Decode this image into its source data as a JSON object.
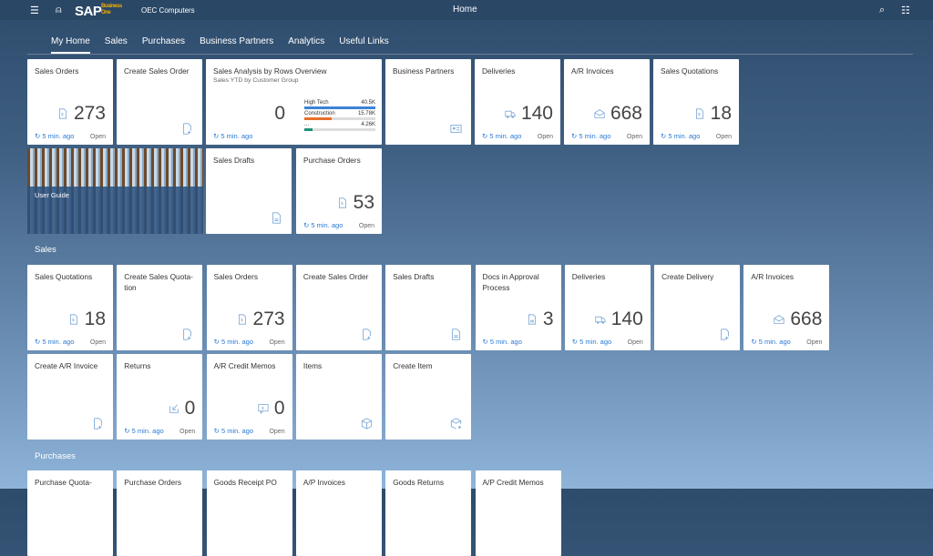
{
  "shell": {
    "company": "OEC Computers",
    "title": "Home",
    "logo": "SAP Business One"
  },
  "tabs": [
    {
      "label": "My Home",
      "active": true
    },
    {
      "label": "Sales"
    },
    {
      "label": "Purchases"
    },
    {
      "label": "Business Partners"
    },
    {
      "label": "Analytics"
    },
    {
      "label": "Useful Links"
    }
  ],
  "colors": {
    "accent": "#2a7ad6",
    "shell": "#2a4766",
    "bar1": "#3b82d6",
    "bar2": "#e8702a",
    "bar3": "#1f8f7a"
  },
  "analysis": {
    "title": "Sales Analysis by Rows Overview",
    "subtitle": "Sales YTD by Customer Group",
    "value": "0",
    "footer": "5 min. ago",
    "bars": [
      {
        "label": "High Tech",
        "value": "40.5K",
        "fraction": 1.0
      },
      {
        "label": "Construction",
        "value": "15.78K",
        "fraction": 0.39
      },
      {
        "label": "...",
        "value": "4.26K",
        "fraction": 0.11
      }
    ]
  },
  "user_guide": {
    "label": "User Guide"
  },
  "sections": {
    "sales": "Sales",
    "purchases": "Purchases"
  },
  "home_tiles": [
    {
      "title": "Sales Orders",
      "value": "273",
      "icon": "document-dollar-icon",
      "footer": "5 min. ago",
      "status": "Open"
    },
    {
      "title": "Create Sales Order",
      "icon": "document-add-icon"
    },
    {
      "title": "Business Partners",
      "icon": "contact-card-icon"
    },
    {
      "title": "Deliveries",
      "value": "140",
      "icon": "truck-icon",
      "footer": "5 min. ago",
      "status": "Open"
    },
    {
      "title": "A/R Invoices",
      "value": "668",
      "icon": "envelope-icon",
      "footer": "5 min. ago",
      "status": "Open"
    },
    {
      "title": "Sales Quotations",
      "value": "18",
      "icon": "document-dollar-icon",
      "footer": "5 min. ago",
      "status": "Open"
    },
    {
      "title": "Sales Drafts",
      "icon": "document-icon"
    },
    {
      "title": "Purchase Orders",
      "value": "53",
      "icon": "document-dollar-icon",
      "footer": "5 min. ago",
      "status": "Open"
    }
  ],
  "sales_tiles": [
    {
      "title": "Sales Quotations",
      "value": "18",
      "icon": "document-dollar-icon",
      "footer": "5 min. ago",
      "status": "Open"
    },
    {
      "title": "Create Sales Quota-tion",
      "icon": "document-add-icon"
    },
    {
      "title": "Sales Orders",
      "value": "273",
      "icon": "document-dollar-icon",
      "footer": "5 min. ago",
      "status": "Open"
    },
    {
      "title": "Create Sales Order",
      "icon": "document-add-icon"
    },
    {
      "title": "Sales Drafts",
      "icon": "document-icon"
    },
    {
      "title": "Docs in Approval Process",
      "value": "3",
      "icon": "document-icon",
      "footer": "5 min. ago"
    },
    {
      "title": "Deliveries",
      "value": "140",
      "icon": "truck-icon",
      "footer": "5 min. ago",
      "status": "Open"
    },
    {
      "title": "Create Delivery",
      "icon": "document-add-icon"
    },
    {
      "title": "A/R Invoices",
      "value": "668",
      "icon": "envelope-icon",
      "footer": "5 min. ago",
      "status": "Open"
    },
    {
      "title": "Create A/R Invoice",
      "icon": "document-add-icon"
    },
    {
      "title": "Returns",
      "value": "0",
      "icon": "return-icon",
      "footer": "5 min. ago",
      "status": "Open"
    },
    {
      "title": "A/R Credit Memos",
      "value": "0",
      "icon": "memo-icon",
      "footer": "5 min. ago",
      "status": "Open"
    },
    {
      "title": "Items",
      "icon": "box-icon"
    },
    {
      "title": "Create Item",
      "icon": "box-add-icon"
    }
  ],
  "purchase_tiles": [
    {
      "title": "Purchase Quota-"
    },
    {
      "title": "Purchase Orders"
    },
    {
      "title": "Goods Receipt PO"
    },
    {
      "title": "A/P Invoices"
    },
    {
      "title": "Goods Returns"
    },
    {
      "title": "A/P Credit Memos"
    }
  ]
}
